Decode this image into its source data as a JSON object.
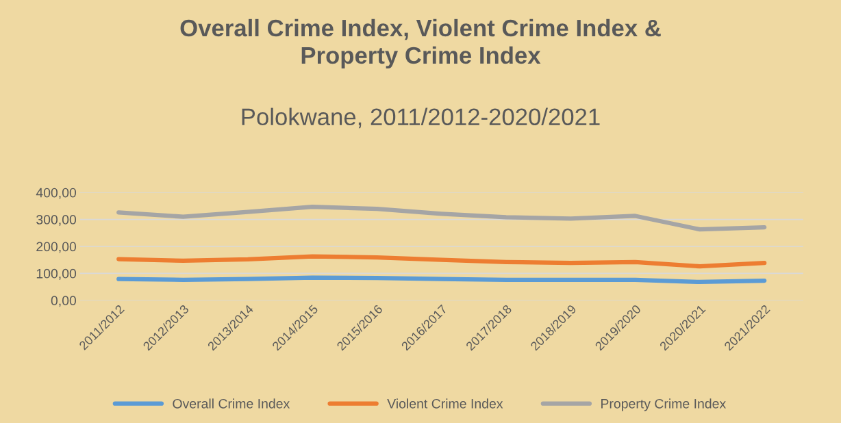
{
  "chart_data": {
    "type": "line",
    "title": "Overall Crime Index, Violent Crime Index &\nProperty Crime Index",
    "subtitle": "Polokwane, 2011/2012-2020/2021",
    "categories": [
      "2011/2012",
      "2012/2013",
      "2013/2014",
      "2014/2015",
      "2015/2016",
      "2016/2017",
      "2017/2018",
      "2018/2019",
      "2019/2020",
      "2020/2021",
      "2021/2022"
    ],
    "series": [
      {
        "name": "Overall Crime Index",
        "color": "#5b9bd5",
        "values": [
          79,
          76,
          79,
          84,
          83,
          79,
          76,
          76,
          76,
          68,
          73
        ]
      },
      {
        "name": "Violent Crime Index",
        "color": "#ed7d31",
        "values": [
          153,
          147,
          152,
          163,
          159,
          150,
          142,
          139,
          142,
          126,
          139
        ]
      },
      {
        "name": "Property Crime Index",
        "color": "#a5a5a5",
        "values": [
          326,
          310,
          328,
          347,
          339,
          321,
          308,
          303,
          313,
          263,
          271
        ]
      }
    ],
    "ylim": [
      0,
      400
    ],
    "yticks": [
      {
        "value": 0,
        "label": "0,00"
      },
      {
        "value": 100,
        "label": "100,00"
      },
      {
        "value": 200,
        "label": "200,00"
      },
      {
        "value": 300,
        "label": "300,00"
      },
      {
        "value": 400,
        "label": "400,00"
      }
    ],
    "grid": "y",
    "legend": "bottom",
    "marker": "none",
    "line_style": "solid"
  }
}
